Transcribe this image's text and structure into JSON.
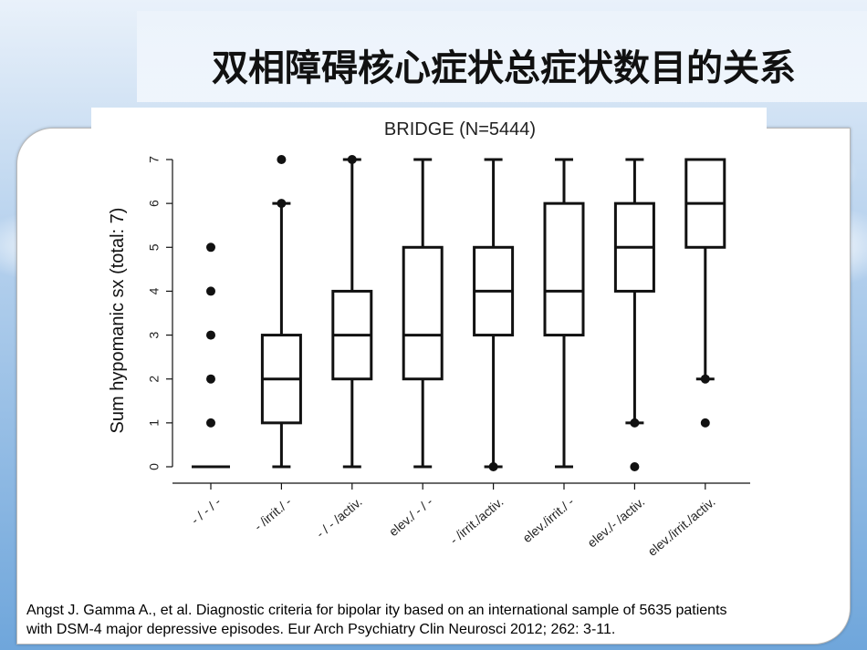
{
  "slide": {
    "title": "双相障碍核心症状总症状数目的关系",
    "caption_line1": "Angst J. Gamma A., et al. Diagnostic criteria for bipolar ity based on an international sample of 5635 patients",
    "caption_line2": "with DSM-4 major depressive episodes. Eur Arch Psychiatry Clin Neurosci 2012; 262: 3-11."
  },
  "colors": {
    "sky_top": "#cfe0f3",
    "sky_bottom": "#7eb0de",
    "ink": "#111111"
  },
  "chart_data": {
    "type": "boxplot",
    "title": "BRIDGE (N=5444)",
    "ylabel": "Sum hypomanic sx (total: 7)",
    "xlabel": "",
    "ylim": [
      0,
      7
    ],
    "yticks": [
      "0",
      "1",
      "2",
      "3",
      "4",
      "5",
      "6",
      "7"
    ],
    "grid": false,
    "categories": [
      "- / - / -",
      "- /irrit./ -",
      "- / - /activ.",
      "elev./ - / -",
      "- /irrit./activ.",
      "elev./irrit./ -",
      "elev./- /activ.",
      "elev./irrit./activ."
    ],
    "boxes": [
      {
        "whisker_low": 0,
        "q1": 0,
        "median": 0,
        "q3": 0,
        "whisker_high": 0,
        "outliers": [
          1,
          2,
          3,
          4,
          5
        ]
      },
      {
        "whisker_low": 0,
        "q1": 1,
        "median": 2,
        "q3": 3,
        "whisker_high": 6,
        "outliers": [
          6,
          7
        ]
      },
      {
        "whisker_low": 0,
        "q1": 2,
        "median": 3,
        "q3": 4,
        "whisker_high": 7,
        "outliers": [
          7
        ]
      },
      {
        "whisker_low": 0,
        "q1": 2,
        "median": 3,
        "q3": 5,
        "whisker_high": 7,
        "outliers": []
      },
      {
        "whisker_low": 0,
        "q1": 3,
        "median": 4,
        "q3": 5,
        "whisker_high": 7,
        "outliers": [
          0
        ]
      },
      {
        "whisker_low": 0,
        "q1": 3,
        "median": 4,
        "q3": 6,
        "whisker_high": 7,
        "outliers": []
      },
      {
        "whisker_low": 1,
        "q1": 4,
        "median": 5,
        "q3": 6,
        "whisker_high": 7,
        "outliers": [
          1,
          0
        ]
      },
      {
        "whisker_low": 2,
        "q1": 5,
        "median": 6,
        "q3": 7,
        "whisker_high": 7,
        "outliers": [
          2,
          1
        ]
      }
    ]
  }
}
